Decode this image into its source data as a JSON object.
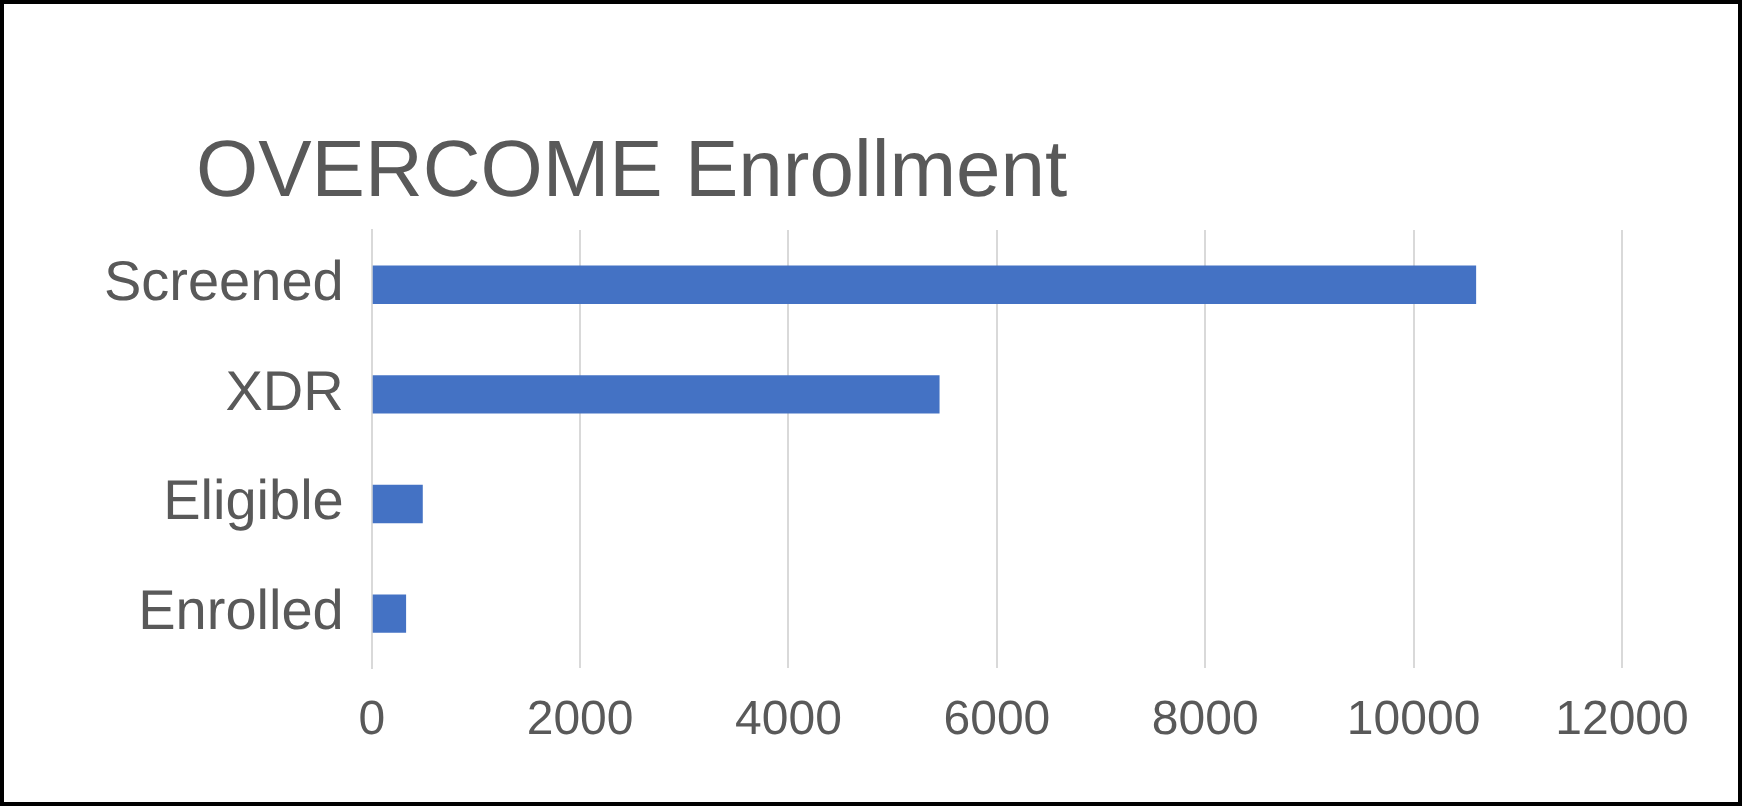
{
  "chart_data": {
    "type": "bar",
    "orientation": "horizontal",
    "title": "OVERCOME Enrollment",
    "categories": [
      "Screened",
      "XDR",
      "Eligible",
      "Enrolled"
    ],
    "values": [
      10600,
      5450,
      490,
      330
    ],
    "color": "#4472c4",
    "xlim": [
      0,
      12000
    ],
    "xticks": [
      0,
      2000,
      4000,
      6000,
      8000,
      10000,
      12000
    ],
    "grid": "x",
    "legend": false
  }
}
